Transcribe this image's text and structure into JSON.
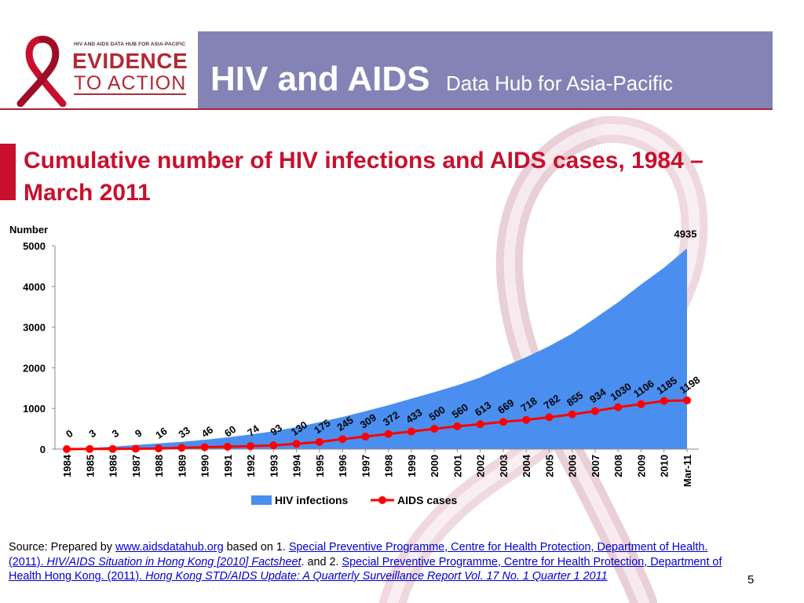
{
  "header": {
    "logo": {
      "tagline": "HIV AND AIDS DATA HUB FOR ASIA-PACIFIC",
      "line1": "EVIDENCE",
      "line2": "TO ACTION"
    },
    "title_main": "HIV and AIDS",
    "title_sub": "Data Hub for Asia-Pacific"
  },
  "slide_title": "Cumulative number of HIV infections and AIDS cases, 1984 – March 2011",
  "chart_data": {
    "type": "area",
    "title": "",
    "ylabel": "Number",
    "xlabel": "",
    "ylim": [
      0,
      5000
    ],
    "yticks": [
      0,
      1000,
      2000,
      3000,
      4000,
      5000
    ],
    "categories": [
      "1984",
      "1985",
      "1986",
      "1987",
      "1988",
      "1989",
      "1990",
      "1991",
      "1992",
      "1993",
      "1994",
      "1995",
      "1996",
      "1997",
      "1998",
      "1999",
      "2000",
      "2001",
      "2002",
      "2003",
      "2004",
      "2005",
      "2006",
      "2007",
      "2008",
      "2009",
      "2010",
      "Mar-11"
    ],
    "series": [
      {
        "name": "HIV infections",
        "type": "area",
        "color": "#4a8ff0",
        "values": [
          0,
          30,
          60,
          100,
          140,
          180,
          230,
          290,
          360,
          440,
          540,
          660,
          790,
          930,
          1080,
          1240,
          1400,
          1570,
          1760,
          2020,
          2260,
          2530,
          2840,
          3220,
          3610,
          4050,
          4460,
          4935
        ],
        "last_label": "4935"
      },
      {
        "name": "AIDS cases",
        "type": "line",
        "color": "#ff0000",
        "values": [
          0,
          3,
          3,
          9,
          16,
          33,
          46,
          60,
          74,
          93,
          130,
          175,
          245,
          309,
          372,
          433,
          500,
          560,
          613,
          669,
          718,
          782,
          855,
          934,
          1030,
          1106,
          1185,
          1198
        ]
      }
    ],
    "legend_position": "bottom",
    "grid": false
  },
  "source": {
    "prefix": "Source: Prepared by ",
    "link1": "www.aidsdatahub.org",
    "mid1": "  based on 1. ",
    "link2": "Special Preventive Programme, Centre for Health Protection, Department of Health. (2011). ",
    "link2_italic": "HIV/AIDS Situation in Hong Kong [2010] Factsheet",
    "mid2": ". and  2. ",
    "link3": "Special Preventive Programme, Centre for Health Protection, Department of Health Hong Kong. (2011). ",
    "link3_italic": "Hong Kong STD/AIDS Update: A Quarterly Surveillance Report Vol. 17 No. 1 Quarter 1 2011"
  },
  "page_number": "5"
}
